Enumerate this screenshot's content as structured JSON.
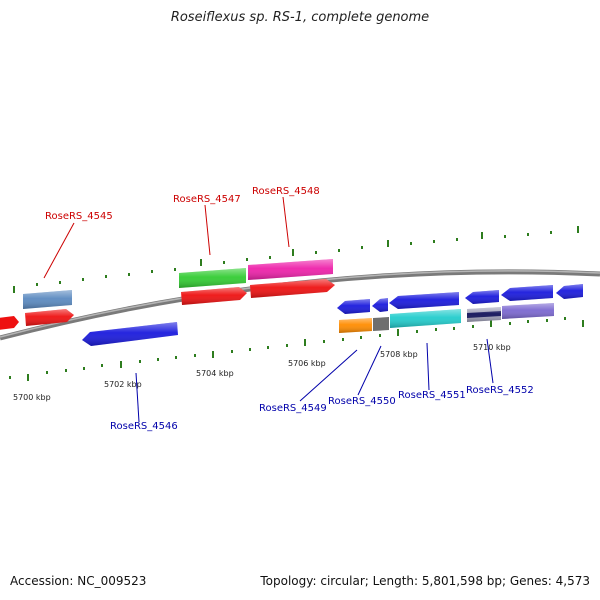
{
  "title": "Roseiflexus sp. RS-1, complete genome",
  "footer": {
    "accession": "Accession: NC_009523",
    "info": "Topology: circular; Length: 5,801,598 bp; Genes: 4,573"
  },
  "scale": {
    "unit": "kbp",
    "ticks": [
      "5700 kbp",
      "5702 kbp",
      "5704 kbp",
      "5706 kbp",
      "5708 kbp",
      "5710 kbp"
    ]
  },
  "genes": {
    "top": [
      {
        "name": "RoseRS_4545",
        "color": "#e00000"
      },
      {
        "name": "RoseRS_4547",
        "color": "#cc0000"
      },
      {
        "name": "RoseRS_4548",
        "color": "#cc0000"
      }
    ],
    "bottom": [
      {
        "name": "RoseRS_4546",
        "color": "#0000aa"
      },
      {
        "name": "RoseRS_4549",
        "color": "#0000aa"
      },
      {
        "name": "RoseRS_4550",
        "color": "#0000aa"
      },
      {
        "name": "RoseRS_4551",
        "color": "#0000aa"
      },
      {
        "name": "RoseRS_4552",
        "color": "#0000aa"
      }
    ]
  },
  "colors": {
    "backbone": "#8a8a8a",
    "tick": "#2e7d1e",
    "forward_cds": "#ee1111",
    "reverse_cds": "#1a1add",
    "rna_green": "#33cc33",
    "rna_pink": "#ee22aa",
    "steelblue": "#5b8ac0",
    "orange": "#ff8c00",
    "grey": "#6e6e6e",
    "cyan": "#22cccc",
    "purple": "#7b68d0"
  }
}
